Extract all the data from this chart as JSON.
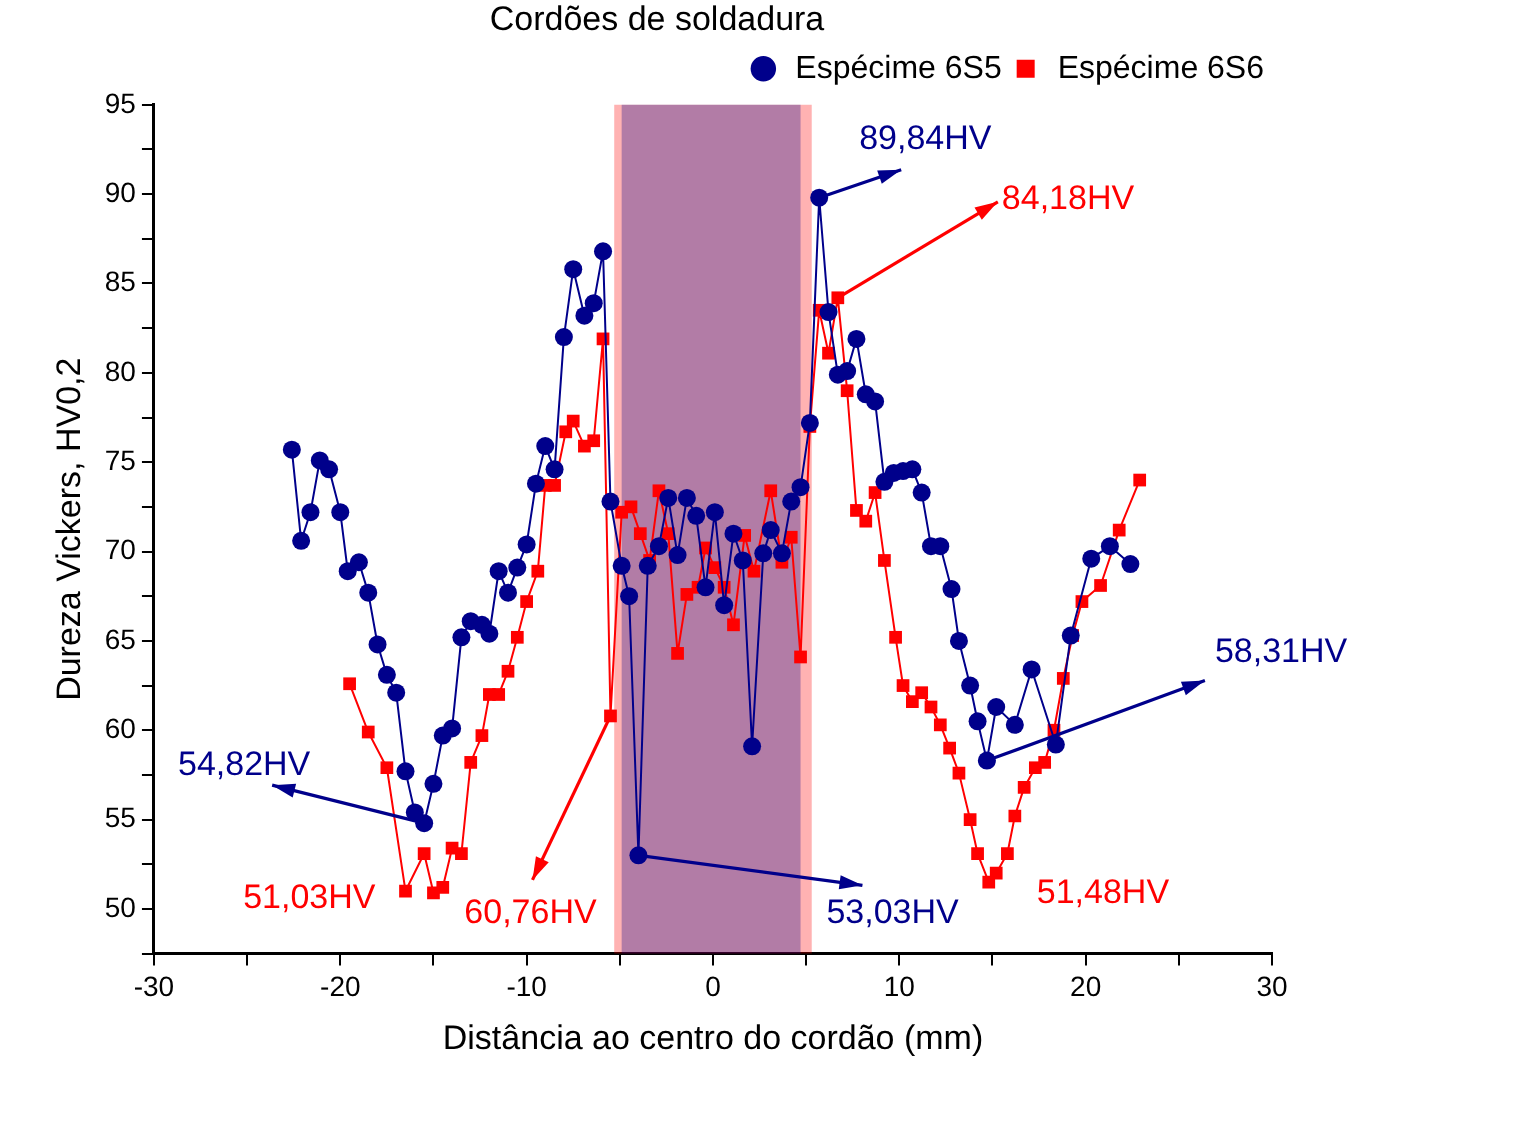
{
  "chart_data": {
    "type": "line",
    "title": "Cordões de soldadura",
    "xlabel": "Distância ao centro do cordão (mm)",
    "ylabel": "Dureza Vickers, HV0,2",
    "xlim": [
      -30,
      30
    ],
    "xticks": [
      -30,
      {
        "value": -25,
        "label": null
      },
      -20,
      {
        "value": -15,
        "label": null
      },
      -10,
      {
        "value": -5,
        "label": null
      },
      0,
      {
        "value": 5,
        "label": null
      },
      10,
      {
        "value": 15,
        "label": null
      },
      20,
      {
        "value": 25,
        "label": null
      },
      30
    ],
    "ylim": [
      47.5,
      95
    ],
    "yticks": [
      {
        "value": 47.5,
        "label": null
      },
      50,
      {
        "value": 52.5,
        "label": null
      },
      55,
      {
        "value": 57.5,
        "label": null
      },
      60,
      {
        "value": 62.5,
        "label": null
      },
      65,
      {
        "value": 67.5,
        "label": null
      },
      70,
      {
        "value": 72.5,
        "label": null
      },
      75,
      {
        "value": 77.5,
        "label": null
      },
      80,
      {
        "value": 82.5,
        "label": null
      },
      85,
      {
        "value": 87.5,
        "label": null
      },
      90,
      {
        "value": 92.5,
        "label": null
      },
      95
    ],
    "grid": false,
    "legend": "top right",
    "line_style": "solid",
    "series": [
      {
        "name": "Espécime 6S5",
        "color": "#00008b",
        "marker": "circle",
        "x": [
          -22.6,
          -22.1,
          -21.6,
          -21.1,
          -20.6,
          -20.0,
          -19.6,
          -19.0,
          -18.5,
          -18.0,
          -17.5,
          -17.0,
          -16.5,
          -16.0,
          -15.5,
          -15.0,
          -14.5,
          -14.0,
          -13.5,
          -13.0,
          -12.4,
          -12.0,
          -11.5,
          -11.0,
          -10.5,
          -10.0,
          -9.5,
          -9.0,
          -8.5,
          -8.0,
          -7.5,
          -6.9,
          -6.4,
          -5.9,
          -5.5,
          -4.9,
          -4.5,
          -4.0,
          -3.5,
          -2.9,
          -2.4,
          -1.9,
          -1.4,
          -0.9,
          -0.4,
          0.1,
          0.6,
          1.1,
          1.6,
          2.1,
          2.7,
          3.1,
          3.7,
          4.2,
          4.7,
          5.2,
          5.7,
          6.2,
          6.7,
          7.2,
          7.7,
          8.2,
          8.7,
          9.2,
          9.7,
          10.2,
          10.7,
          11.2,
          11.7,
          12.2,
          12.8,
          13.2,
          13.8,
          14.2,
          14.7,
          15.2,
          16.2,
          17.1,
          18.4,
          19.2,
          20.3,
          21.3,
          22.4
        ],
        "values": [
          75.7,
          70.6,
          72.2,
          75.1,
          74.6,
          72.2,
          68.9,
          69.4,
          67.7,
          64.8,
          63.1,
          62.1,
          57.7,
          55.4,
          54.8,
          57.0,
          59.7,
          60.1,
          65.2,
          66.1,
          65.9,
          65.4,
          68.9,
          67.7,
          69.1,
          70.4,
          73.8,
          75.9,
          74.6,
          82.0,
          85.8,
          83.2,
          83.9,
          86.8,
          72.8,
          69.2,
          67.5,
          53.0,
          69.2,
          70.3,
          73.0,
          69.8,
          73.0,
          72.0,
          68.0,
          72.2,
          67.0,
          71.0,
          69.5,
          59.1,
          69.9,
          71.2,
          69.9,
          72.8,
          73.6,
          77.2,
          89.8,
          83.4,
          79.9,
          80.1,
          81.9,
          78.8,
          78.4,
          73.9,
          74.4,
          74.5,
          74.6,
          73.3,
          70.3,
          70.3,
          67.9,
          65.0,
          62.5,
          60.5,
          58.3,
          61.3,
          60.3,
          63.4,
          59.2,
          65.3,
          69.6,
          70.3,
          69.3
        ]
      },
      {
        "name": "Espécime 6S6",
        "color": "#ff0000",
        "marker": "square",
        "x": [
          -19.5,
          -18.5,
          -17.5,
          -16.5,
          -15.5,
          -15.0,
          -14.5,
          -14.0,
          -13.5,
          -13.0,
          -12.4,
          -12.0,
          -11.5,
          -11.0,
          -10.5,
          -10.0,
          -9.4,
          -9.0,
          -8.5,
          -7.9,
          -7.5,
          -6.9,
          -6.4,
          -5.9,
          -5.5,
          -4.9,
          -4.4,
          -3.9,
          -3.4,
          -2.9,
          -2.4,
          -1.9,
          -1.4,
          -0.8,
          -0.4,
          0.1,
          0.6,
          1.1,
          1.7,
          2.2,
          3.1,
          3.7,
          4.2,
          4.7,
          5.2,
          5.7,
          6.2,
          6.7,
          7.2,
          7.7,
          8.2,
          8.7,
          9.2,
          9.8,
          10.2,
          10.7,
          11.2,
          11.7,
          12.2,
          12.7,
          13.2,
          13.8,
          14.2,
          14.8,
          15.2,
          15.8,
          16.2,
          16.7,
          17.3,
          17.8,
          18.3,
          18.8,
          19.3,
          19.8,
          20.8,
          21.8,
          22.9
        ],
        "values": [
          62.6,
          59.9,
          57.9,
          51.0,
          53.1,
          50.9,
          51.2,
          53.4,
          53.1,
          58.2,
          59.7,
          62.0,
          62.0,
          63.3,
          65.2,
          67.2,
          68.9,
          73.7,
          73.7,
          76.7,
          77.3,
          75.9,
          76.2,
          81.9,
          60.8,
          72.2,
          72.5,
          71.0,
          69.5,
          73.4,
          71.0,
          64.3,
          67.6,
          68.0,
          70.2,
          69.1,
          68.0,
          65.9,
          70.9,
          68.9,
          73.4,
          69.4,
          70.8,
          64.1,
          77.0,
          83.5,
          81.1,
          84.2,
          79.0,
          72.3,
          71.7,
          73.3,
          69.5,
          65.2,
          62.5,
          61.6,
          62.1,
          61.3,
          60.3,
          59.0,
          57.6,
          55.0,
          53.1,
          51.5,
          52.0,
          53.1,
          55.2,
          56.8,
          57.9,
          58.2,
          60.0,
          62.9,
          65.3,
          67.2,
          68.1,
          71.2,
          74.0
        ]
      }
    ],
    "bands": [
      {
        "axis": "x",
        "from": -5.3,
        "to": 5.3,
        "color": "#ff0000"
      },
      {
        "axis": "x",
        "from": -4.9,
        "to": 4.7,
        "color": "#00008b"
      }
    ],
    "annotations": [
      {
        "text": "89,84HV",
        "x": 5.7,
        "y": 89.8
      },
      {
        "text": "84,18HV",
        "x": 6.7,
        "y": 84.2
      },
      {
        "text": "54,82HV",
        "x": -15.5,
        "y": 54.8
      },
      {
        "text": "51,03HV",
        "x": -16.5,
        "y": 51.0
      },
      {
        "text": "60,76HV",
        "x": -5.5,
        "y": 60.8
      },
      {
        "text": "53,03HV",
        "x": -4.0,
        "y": 53.0
      },
      {
        "text": "58,31HV",
        "x": 14.7,
        "y": 58.3
      },
      {
        "text": "51,48HV",
        "x": 14.8,
        "y": 51.5
      }
    ]
  }
}
